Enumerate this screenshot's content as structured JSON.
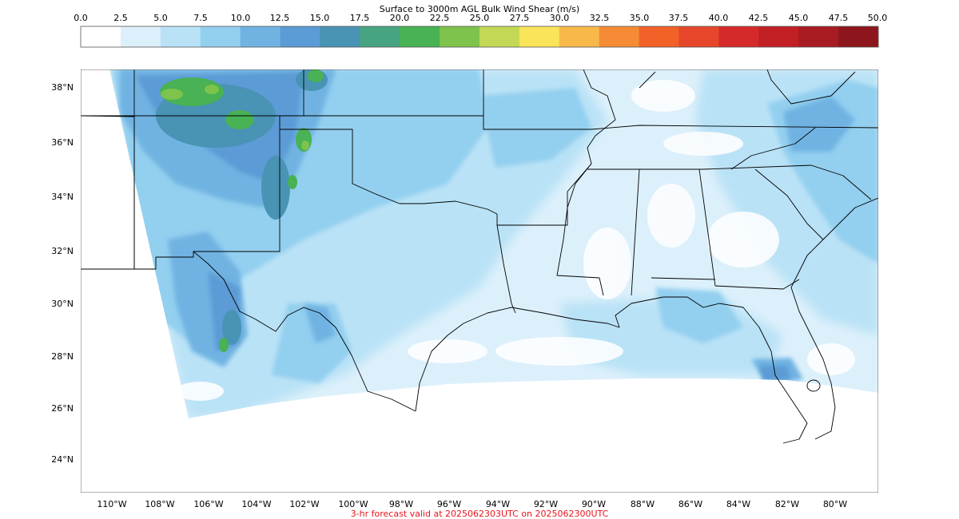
{
  "colorbar": {
    "title": "Surface to 3000m AGL Bulk Wind Shear (m/s)",
    "ticks": [
      "0.0",
      "2.5",
      "5.0",
      "7.5",
      "10.0",
      "12.5",
      "15.0",
      "17.5",
      "20.0",
      "22.5",
      "25.0",
      "27.5",
      "30.0",
      "32.5",
      "35.0",
      "37.5",
      "40.0",
      "42.5",
      "45.0",
      "47.5",
      "50.0"
    ],
    "colors": [
      "#ffffff",
      "#dcf0fb",
      "#b9e2f6",
      "#93cfef",
      "#70b3e2",
      "#5b9bd6",
      "#4993b4",
      "#46a580",
      "#48b254",
      "#7ec34c",
      "#c3d955",
      "#f9e45a",
      "#f8b94a",
      "#f68b35",
      "#f16128",
      "#e6472a",
      "#d62a2a",
      "#c21f25",
      "#a91b22",
      "#8d161c"
    ]
  },
  "map": {
    "lat_labels": [
      "38°N",
      "36°N",
      "34°N",
      "32°N",
      "30°N",
      "28°N",
      "26°N",
      "24°N"
    ],
    "lon_labels": [
      "110°W",
      "108°W",
      "106°W",
      "104°W",
      "102°W",
      "100°W",
      "98°W",
      "96°W",
      "94°W",
      "92°W",
      "90°W",
      "88°W",
      "86°W",
      "84°W",
      "82°W",
      "80°W"
    ],
    "lon_values": [
      -110,
      -108,
      -106,
      -104,
      -102,
      -100,
      -98,
      -96,
      -94,
      -92,
      -90,
      -88,
      -86,
      -84,
      -82,
      -80
    ],
    "lat_values": [
      38,
      36,
      34,
      32,
      30,
      28,
      26,
      24
    ],
    "extent": {
      "west": -111.3,
      "east": -78.3,
      "south": 22.8,
      "north": 38.7
    },
    "field_colors": {
      "pale": "#dcf0fb",
      "light": "#b9e2f6",
      "mid": "#93cfef",
      "strong": "#70b3e2",
      "stronger": "#5b9bd6",
      "teal": "#4993b4",
      "green": "#48b254",
      "lime": "#7ec34c"
    }
  },
  "footer": {
    "text": "3-hr forecast valid at 2025062303UTC on 2025062300UTC",
    "color": "#e8141c"
  }
}
